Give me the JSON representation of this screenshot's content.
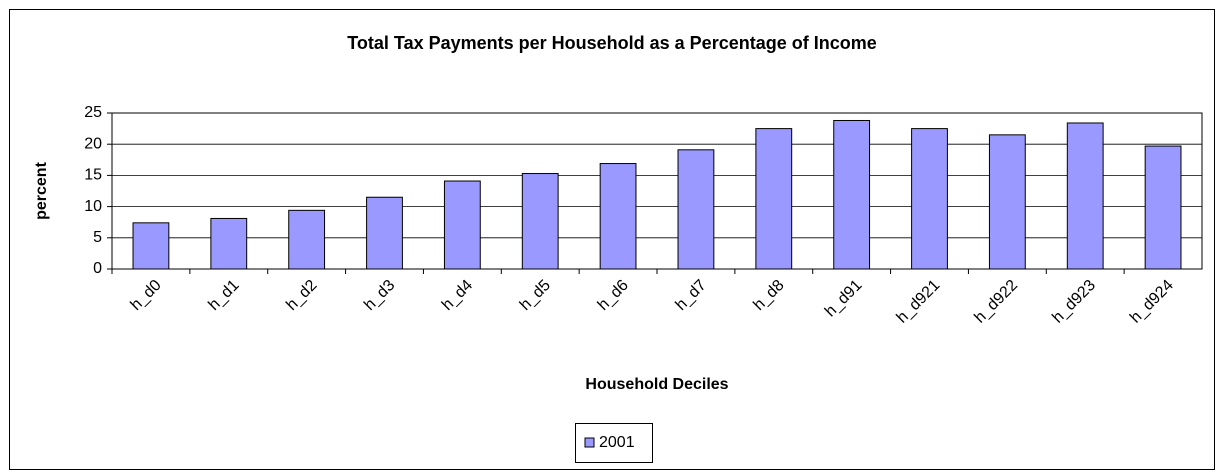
{
  "chart_data": {
    "type": "bar",
    "title": "Total Tax Payments per Household as a Percentage of Income",
    "x_label": "Household Deciles",
    "y_label": "percent",
    "categories": [
      "h_d0",
      "h_d1",
      "h_d2",
      "h_d3",
      "h_d4",
      "h_d5",
      "h_d6",
      "h_d7",
      "h_d8",
      "h_d91",
      "h_d921",
      "h_d922",
      "h_d923",
      "h_d924"
    ],
    "series": [
      {
        "name": "2001",
        "color": "#9999ff",
        "values": [
          7.4,
          8.1,
          9.4,
          11.5,
          14.1,
          15.3,
          16.9,
          19.1,
          22.5,
          23.8,
          22.5,
          21.5,
          23.4,
          19.7
        ]
      }
    ],
    "ylim": [
      0,
      25
    ],
    "yticks": [
      0,
      5,
      10,
      15,
      20,
      25
    ],
    "grid": true,
    "legend": "bottom"
  }
}
